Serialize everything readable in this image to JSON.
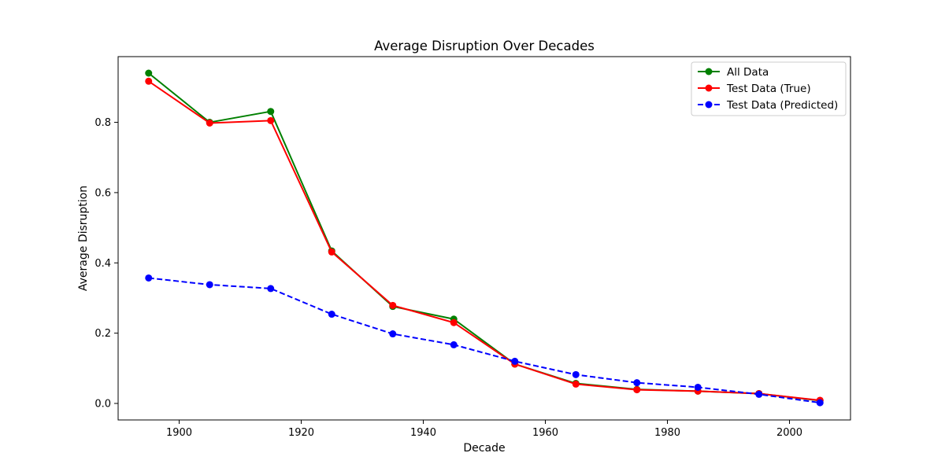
{
  "chart_data": {
    "type": "line",
    "title": "Average Disruption Over Decades",
    "xlabel": "Decade",
    "ylabel": "Average Disruption",
    "x": [
      1895,
      1905,
      1915,
      1925,
      1935,
      1945,
      1955,
      1965,
      1975,
      1985,
      1995,
      2005
    ],
    "xlim": [
      1890,
      2010
    ],
    "ylim": [
      -0.047,
      0.987
    ],
    "x_ticks": [
      1900,
      1920,
      1940,
      1960,
      1980,
      2000
    ],
    "y_ticks": [
      0.0,
      0.2,
      0.4,
      0.6,
      0.8
    ],
    "x_tick_labels": [
      "1900",
      "1920",
      "1940",
      "1960",
      "1980",
      "2000"
    ],
    "y_tick_labels": [
      "0.0",
      "0.2",
      "0.4",
      "0.6",
      "0.8"
    ],
    "grid": false,
    "legend_position": "top-right",
    "series": [
      {
        "name": "All Data",
        "color": "#008000",
        "line_style": "solid",
        "marker": "circle",
        "values": [
          0.94,
          0.8,
          0.831,
          0.434,
          0.276,
          0.24,
          0.112,
          0.057,
          0.04,
          0.035,
          0.028,
          0.008
        ]
      },
      {
        "name": "Test Data (True)",
        "color": "#ff0000",
        "line_style": "solid",
        "marker": "circle",
        "values": [
          0.917,
          0.798,
          0.805,
          0.431,
          0.279,
          0.23,
          0.112,
          0.055,
          0.039,
          0.035,
          0.028,
          0.009
        ]
      },
      {
        "name": "Test Data (Predicted)",
        "color": "#0000ff",
        "line_style": "dashed",
        "marker": "circle",
        "values": [
          0.357,
          0.338,
          0.327,
          0.254,
          0.198,
          0.167,
          0.12,
          0.082,
          0.059,
          0.046,
          0.026,
          0.002
        ]
      }
    ]
  }
}
